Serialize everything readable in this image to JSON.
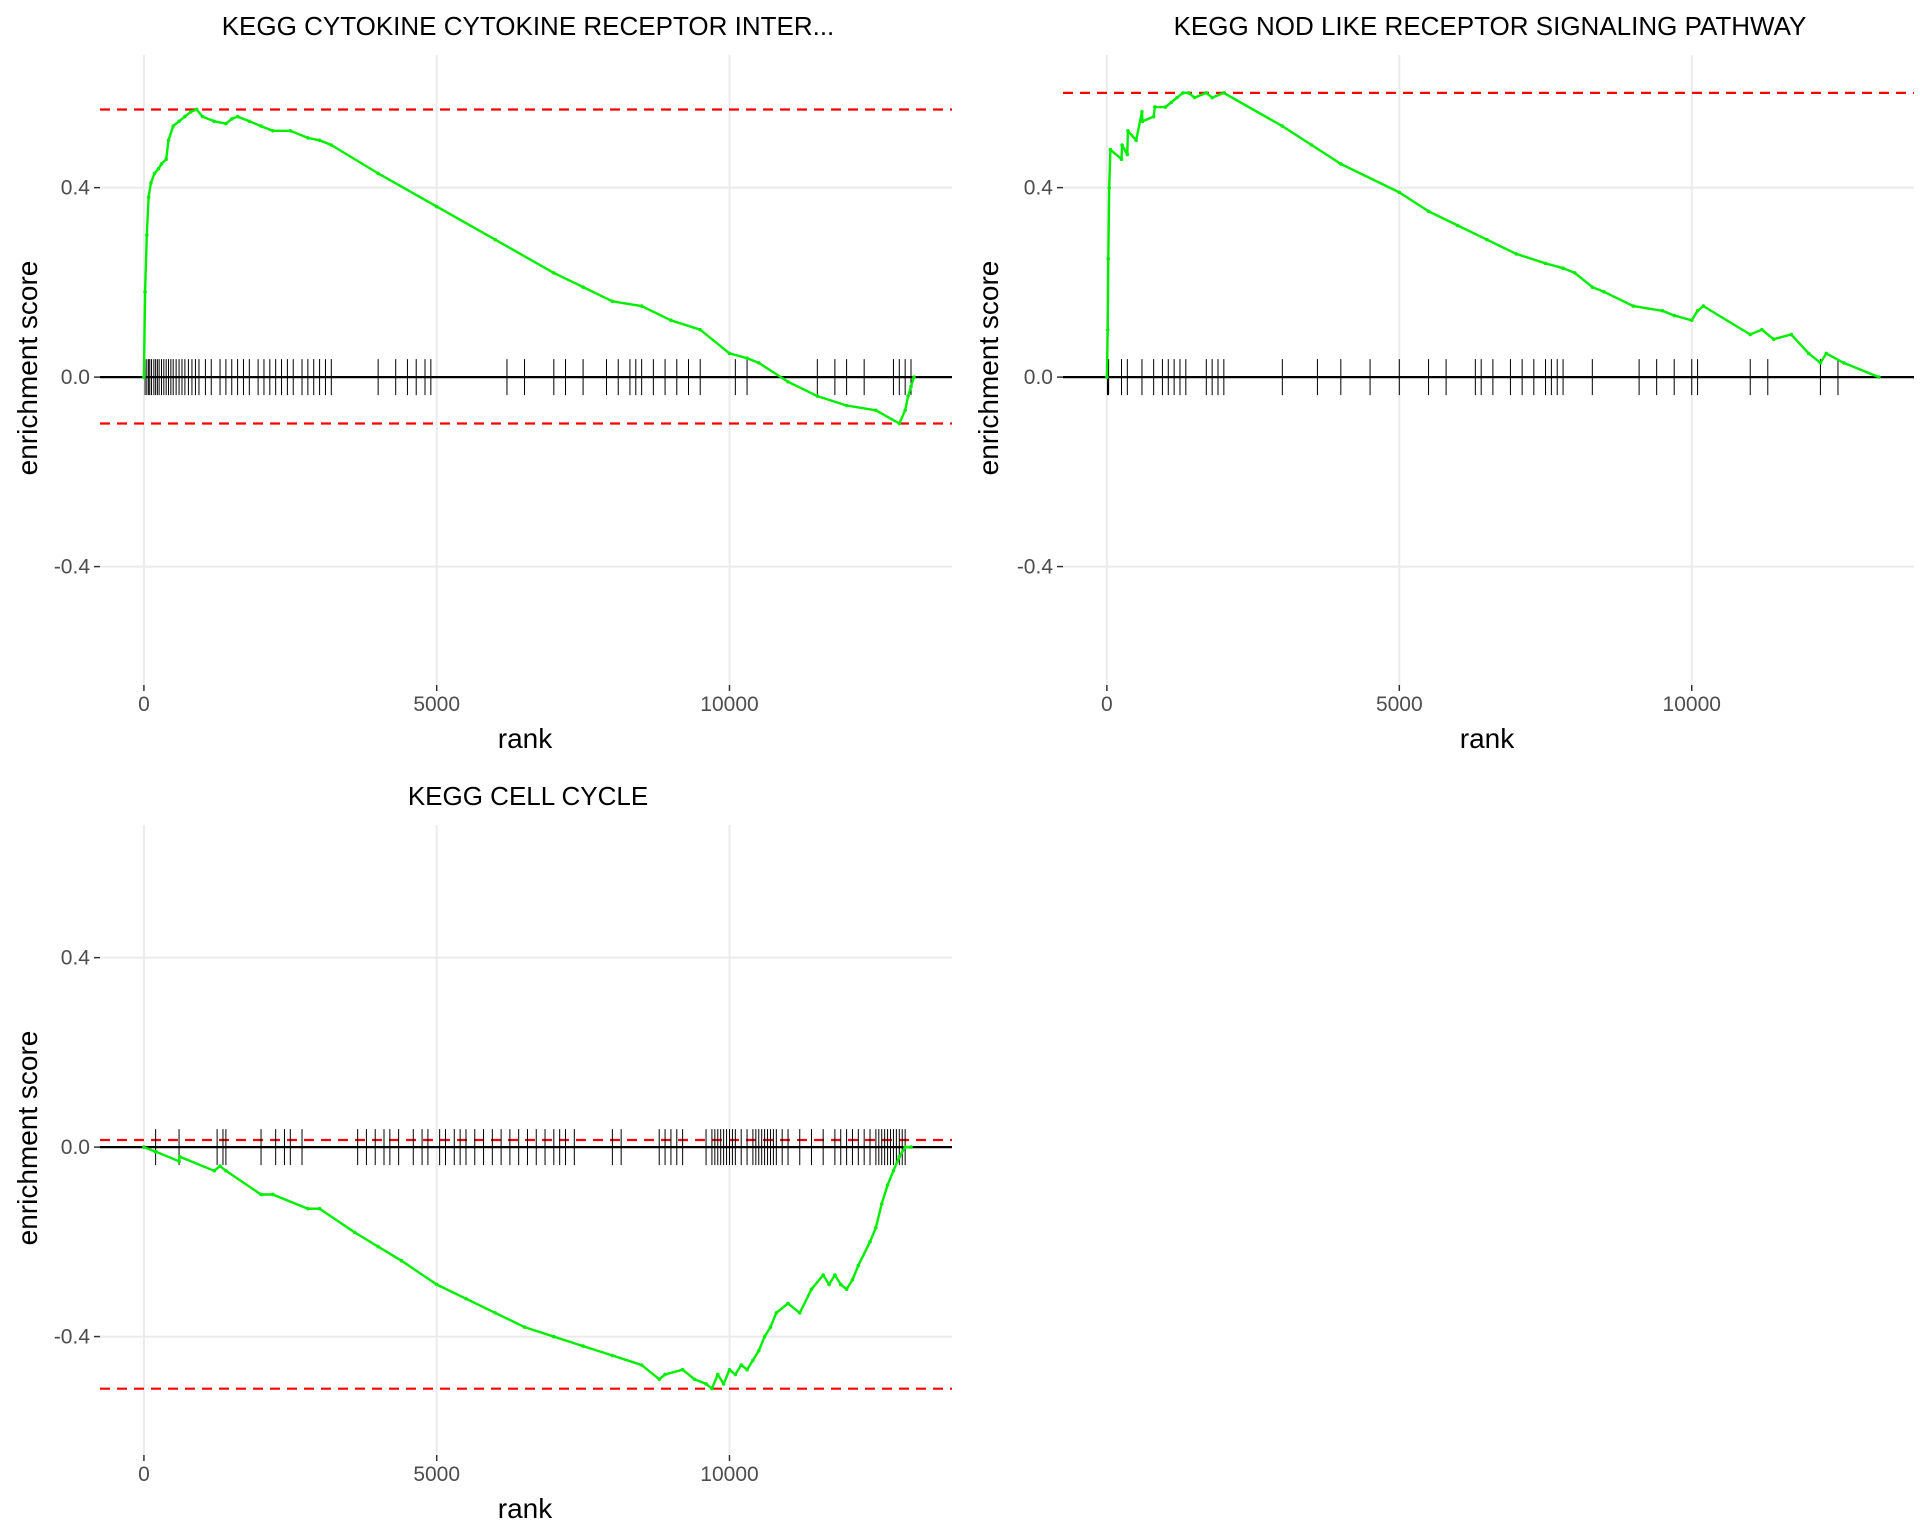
{
  "figure": {
    "background": "#ffffff"
  },
  "colors": {
    "running_score": "#00ee00",
    "max_min_lines": "#ff0000",
    "zero_line": "#000000",
    "gene_ticks": "#000000",
    "grid": "#ebebeb"
  },
  "chart_data": [
    {
      "type": "line",
      "title": "KEGG CYTOKINE CYTOKINE RECEPTOR INTER...",
      "xlabel": "rank",
      "ylabel": "enrichment score",
      "xlim": [
        -750,
        13800
      ],
      "ylim": [
        -0.65,
        0.68
      ],
      "xticks": [
        0,
        5000,
        10000
      ],
      "xtick_labels": [
        "0",
        "5000",
        "10000"
      ],
      "yticks": [
        0.4,
        0.0,
        -0.4
      ],
      "ytick_labels": [
        "0.4",
        "0.0",
        "-0.4"
      ],
      "grid": true,
      "legend": "none",
      "es_max": 0.565,
      "es_min": -0.098,
      "series": [
        {
          "x": [
            0,
            20,
            50,
            80,
            120,
            180,
            250,
            300,
            380,
            420,
            500,
            600,
            700,
            800,
            900,
            1000,
            1200,
            1400,
            1500,
            1600,
            1800,
            2000,
            2200,
            2500,
            2800,
            3000,
            3200,
            4000,
            5000,
            6000,
            7000,
            7500,
            8000,
            8500,
            9000,
            9500,
            10000,
            10300,
            10500,
            11000,
            11500,
            12000,
            12500,
            12900,
            13000,
            13050,
            13100,
            13150
          ],
          "y": [
            0.0,
            0.18,
            0.3,
            0.38,
            0.41,
            0.43,
            0.44,
            0.45,
            0.46,
            0.5,
            0.53,
            0.54,
            0.55,
            0.56,
            0.565,
            0.55,
            0.54,
            0.535,
            0.545,
            0.55,
            0.54,
            0.53,
            0.52,
            0.52,
            0.505,
            0.5,
            0.49,
            0.43,
            0.36,
            0.29,
            0.22,
            0.19,
            0.16,
            0.15,
            0.12,
            0.1,
            0.05,
            0.04,
            0.03,
            -0.01,
            -0.04,
            -0.06,
            -0.07,
            -0.098,
            -0.07,
            -0.04,
            -0.02,
            0.0
          ]
        }
      ],
      "gene_ranks": [
        20,
        50,
        80,
        100,
        130,
        170,
        200,
        230,
        260,
        300,
        340,
        380,
        420,
        460,
        500,
        550,
        600,
        650,
        700,
        760,
        820,
        880,
        940,
        1050,
        1150,
        1300,
        1400,
        1500,
        1600,
        1700,
        1800,
        1950,
        2050,
        2150,
        2250,
        2350,
        2450,
        2550,
        2700,
        2800,
        2900,
        3000,
        3100,
        3200,
        4000,
        4300,
        4500,
        4650,
        4800,
        4900,
        6200,
        6500,
        7000,
        7200,
        7500,
        7900,
        8100,
        8300,
        8400,
        8500,
        8700,
        8900,
        9100,
        9300,
        9500,
        10100,
        10300,
        11500,
        11800,
        12000,
        12300,
        12800,
        12900,
        13000,
        13100
      ]
    },
    {
      "type": "line",
      "title": "KEGG NOD LIKE RECEPTOR SIGNALING PATHWAY",
      "xlabel": "rank",
      "ylabel": "enrichment score",
      "xlim": [
        -750,
        13800
      ],
      "ylim": [
        -0.65,
        0.68
      ],
      "xticks": [
        0,
        5000,
        10000
      ],
      "xtick_labels": [
        "0",
        "5000",
        "10000"
      ],
      "yticks": [
        0.4,
        0.0,
        -0.4
      ],
      "ytick_labels": [
        "0.4",
        "0.0",
        "-0.4"
      ],
      "grid": true,
      "legend": "none",
      "es_max": 0.6,
      "series": [
        {
          "x": [
            0,
            15,
            25,
            40,
            60,
            250,
            260,
            350,
            360,
            500,
            600,
            610,
            800,
            820,
            1000,
            1100,
            1200,
            1300,
            1400,
            1500,
            1700,
            1800,
            2000,
            3000,
            3500,
            4000,
            5000,
            5500,
            6000,
            6500,
            7000,
            7500,
            7800,
            8000,
            8300,
            8500,
            9000,
            9500,
            9700,
            10000,
            10100,
            10200,
            11000,
            11200,
            11400,
            11700,
            12000,
            12200,
            12300,
            12600,
            13200
          ],
          "y": [
            0.0,
            0.1,
            0.25,
            0.4,
            0.48,
            0.46,
            0.49,
            0.47,
            0.52,
            0.5,
            0.56,
            0.54,
            0.55,
            0.57,
            0.57,
            0.58,
            0.59,
            0.6,
            0.6,
            0.59,
            0.6,
            0.59,
            0.6,
            0.53,
            0.49,
            0.45,
            0.39,
            0.35,
            0.32,
            0.29,
            0.26,
            0.24,
            0.23,
            0.22,
            0.19,
            0.18,
            0.15,
            0.14,
            0.13,
            0.12,
            0.14,
            0.15,
            0.09,
            0.1,
            0.08,
            0.09,
            0.05,
            0.03,
            0.05,
            0.03,
            0.0
          ]
        }
      ],
      "gene_ranks": [
        10,
        20,
        30,
        250,
        350,
        600,
        800,
        950,
        1050,
        1150,
        1250,
        1350,
        1700,
        1800,
        1900,
        2000,
        3000,
        3600,
        4000,
        4500,
        5000,
        5500,
        5800,
        6300,
        6400,
        6600,
        6900,
        7100,
        7300,
        7500,
        7600,
        7700,
        7800,
        8300,
        9100,
        9400,
        9700,
        10000,
        10100,
        11000,
        11300,
        12200,
        12500
      ]
    },
    {
      "type": "line",
      "title": "KEGG CELL CYCLE",
      "xlabel": "rank",
      "ylabel": "enrichment score",
      "xlim": [
        -750,
        13800
      ],
      "ylim": [
        -0.65,
        0.68
      ],
      "xticks": [
        0,
        5000,
        10000
      ],
      "xtick_labels": [
        "0",
        "5000",
        "10000"
      ],
      "yticks": [
        0.4,
        0.0,
        -0.4
      ],
      "ytick_labels": [
        "0.4",
        "0.0",
        "-0.4"
      ],
      "grid": true,
      "legend": "none",
      "es_max": 0.015,
      "es_min": -0.51,
      "series": [
        {
          "x": [
            0,
            200,
            210,
            600,
            610,
            1200,
            1300,
            1400,
            2000,
            2200,
            2800,
            3000,
            3600,
            4000,
            4400,
            5000,
            5500,
            6000,
            6500,
            7000,
            7500,
            8000,
            8500,
            8800,
            8900,
            9200,
            9400,
            9600,
            9700,
            9800,
            9900,
            10000,
            10100,
            10200,
            10300,
            10400,
            10500,
            10600,
            10700,
            10800,
            11000,
            11200,
            11400,
            11600,
            11700,
            11800,
            11900,
            12000,
            12100,
            12200,
            12400,
            12500,
            12600,
            12700,
            12800,
            12900,
            13000,
            13100
          ],
          "y": [
            0.0,
            -0.01,
            -0.01,
            -0.03,
            -0.02,
            -0.05,
            -0.04,
            -0.05,
            -0.1,
            -0.1,
            -0.13,
            -0.13,
            -0.18,
            -0.21,
            -0.24,
            -0.29,
            -0.32,
            -0.35,
            -0.38,
            -0.4,
            -0.42,
            -0.44,
            -0.46,
            -0.49,
            -0.48,
            -0.47,
            -0.49,
            -0.5,
            -0.51,
            -0.48,
            -0.5,
            -0.47,
            -0.48,
            -0.46,
            -0.47,
            -0.45,
            -0.43,
            -0.4,
            -0.38,
            -0.35,
            -0.33,
            -0.35,
            -0.3,
            -0.27,
            -0.29,
            -0.27,
            -0.29,
            -0.3,
            -0.28,
            -0.25,
            -0.2,
            -0.17,
            -0.12,
            -0.08,
            -0.05,
            -0.02,
            0.0,
            0.0
          ]
        }
      ],
      "gene_ranks": [
        200,
        600,
        1250,
        1350,
        1400,
        2000,
        2250,
        2400,
        2500,
        2700,
        3650,
        3800,
        3950,
        4100,
        4200,
        4350,
        4600,
        4750,
        4850,
        5050,
        5150,
        5300,
        5400,
        5500,
        5650,
        5800,
        5950,
        6100,
        6250,
        6400,
        6550,
        6700,
        6850,
        7000,
        7100,
        7200,
        7350,
        8000,
        8150,
        8800,
        8900,
        9000,
        9100,
        9200,
        9600,
        9700,
        9750,
        9800,
        9850,
        9900,
        9950,
        10000,
        10050,
        10100,
        10200,
        10300,
        10400,
        10450,
        10500,
        10550,
        10600,
        10650,
        10700,
        10750,
        10800,
        10900,
        11000,
        11200,
        11400,
        11600,
        11800,
        11900,
        12000,
        12100,
        12200,
        12300,
        12400,
        12500,
        12550,
        12600,
        12650,
        12700,
        12750,
        12800,
        12850,
        12900,
        12950,
        13000
      ]
    }
  ]
}
